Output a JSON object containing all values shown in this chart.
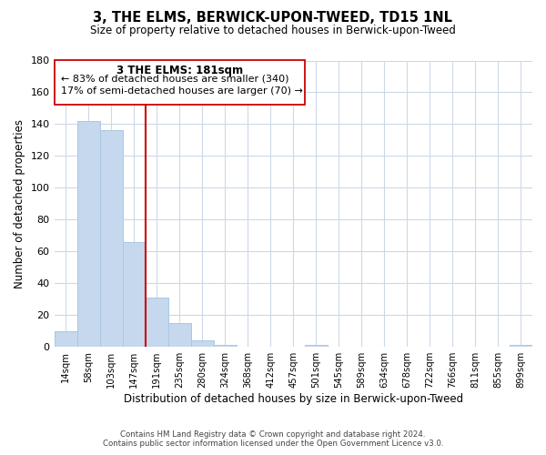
{
  "title": "3, THE ELMS, BERWICK-UPON-TWEED, TD15 1NL",
  "subtitle": "Size of property relative to detached houses in Berwick-upon-Tweed",
  "xlabel": "Distribution of detached houses by size in Berwick-upon-Tweed",
  "ylabel": "Number of detached properties",
  "bar_labels": [
    "14sqm",
    "58sqm",
    "103sqm",
    "147sqm",
    "191sqm",
    "235sqm",
    "280sqm",
    "324sqm",
    "368sqm",
    "412sqm",
    "457sqm",
    "501sqm",
    "545sqm",
    "589sqm",
    "634sqm",
    "678sqm",
    "722sqm",
    "766sqm",
    "811sqm",
    "855sqm",
    "899sqm"
  ],
  "bar_values": [
    10,
    142,
    136,
    66,
    31,
    15,
    4,
    1,
    0,
    0,
    0,
    1,
    0,
    0,
    0,
    0,
    0,
    0,
    0,
    0,
    1
  ],
  "bar_color": "#c5d8ed",
  "bar_edge_color": "#a8c8e0",
  "vline_color": "#cc0000",
  "ylim": [
    0,
    180
  ],
  "yticks": [
    0,
    20,
    40,
    60,
    80,
    100,
    120,
    140,
    160,
    180
  ],
  "annotation_title": "3 THE ELMS: 181sqm",
  "annotation_line1": "← 83% of detached houses are smaller (340)",
  "annotation_line2": "17% of semi-detached houses are larger (70) →",
  "annotation_box_color": "#ffffff",
  "annotation_box_edge": "#cc0000",
  "footer_line1": "Contains HM Land Registry data © Crown copyright and database right 2024.",
  "footer_line2": "Contains public sector information licensed under the Open Government Licence v3.0.",
  "background_color": "#ffffff",
  "grid_color": "#ccd9e8"
}
